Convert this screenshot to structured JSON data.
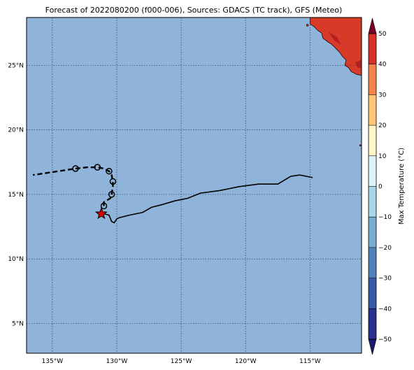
{
  "title": "Forecast of 2022080200 (f000-006), Sources: GDACS (TC track), GFS (Meteo)",
  "map": {
    "ocean_color": "#8fb3d9",
    "grid_color": "#2b3a5a",
    "lon_range": [
      -137,
      -111
    ],
    "lat_range": [
      2.7,
      28.7
    ],
    "lon_ticks": [
      {
        "value": -135,
        "label": "135°W"
      },
      {
        "value": -130,
        "label": "130°W"
      },
      {
        "value": -125,
        "label": "125°W"
      },
      {
        "value": -120,
        "label": "120°W"
      },
      {
        "value": -115,
        "label": "115°W"
      }
    ],
    "lat_ticks": [
      {
        "value": 5,
        "label": "5°N"
      },
      {
        "value": 10,
        "label": "10°N"
      },
      {
        "value": 15,
        "label": "15°N"
      },
      {
        "value": 20,
        "label": "20°N"
      },
      {
        "value": 25,
        "label": "25°N"
      }
    ]
  },
  "tc_track": {
    "past_track": [
      [
        -114.8,
        16.3
      ],
      [
        -115.8,
        16.5
      ],
      [
        -116.5,
        16.4
      ],
      [
        -117.5,
        15.8
      ],
      [
        -119.0,
        15.8
      ],
      [
        -120.5,
        15.6
      ],
      [
        -122.0,
        15.3
      ],
      [
        -123.5,
        15.1
      ],
      [
        -124.5,
        14.7
      ],
      [
        -125.5,
        14.5
      ],
      [
        -126.5,
        14.2
      ],
      [
        -127.3,
        14.0
      ],
      [
        -128.0,
        13.6
      ],
      [
        -129.0,
        13.4
      ],
      [
        -129.8,
        13.2
      ],
      [
        -130.0,
        13.1
      ],
      [
        -130.2,
        12.8
      ],
      [
        -130.4,
        12.9
      ],
      [
        -130.6,
        13.4
      ],
      [
        -131.0,
        13.5
      ]
    ],
    "current_position": [
      -131.2,
      13.5
    ],
    "forecast_points": [
      [
        -131.0,
        14.1
      ],
      [
        -130.4,
        15.0
      ],
      [
        -130.3,
        16.0
      ],
      [
        -130.6,
        16.8
      ],
      [
        -131.5,
        17.1
      ],
      [
        -133.2,
        17.0
      ]
    ],
    "forecast_track": [
      [
        -131.0,
        14.1
      ],
      [
        -131.0,
        14.4
      ],
      [
        -130.5,
        14.7
      ],
      [
        -130.4,
        15.0
      ],
      [
        -130.3,
        15.6
      ],
      [
        -130.3,
        16.0
      ],
      [
        -130.4,
        16.5
      ],
      [
        -130.6,
        16.8
      ],
      [
        -131.0,
        17.0
      ],
      [
        -131.5,
        17.1
      ],
      [
        -132.3,
        17.1
      ],
      [
        -133.2,
        17.0
      ],
      [
        -134.5,
        16.8
      ],
      [
        -136.5,
        16.5
      ]
    ],
    "current_marker_color": "#e00000"
  },
  "land": {
    "color": "#d73a26",
    "dark_color": "#b51f1f"
  },
  "colorbar": {
    "label": "Max Temperature (°C)",
    "min": -50,
    "max": 50,
    "ticks": [
      -50,
      -40,
      -30,
      -20,
      -10,
      0,
      10,
      20,
      30,
      40,
      50
    ],
    "colors": [
      "#2b2f8f",
      "#3a58a8",
      "#5081b9",
      "#77abd0",
      "#a9d6e6",
      "#e0f3f8",
      "#fff5c8",
      "#fdc67a",
      "#f3844d",
      "#d63227",
      "#a30026"
    ],
    "under_color": "#191970",
    "over_color": "#7a0025"
  }
}
